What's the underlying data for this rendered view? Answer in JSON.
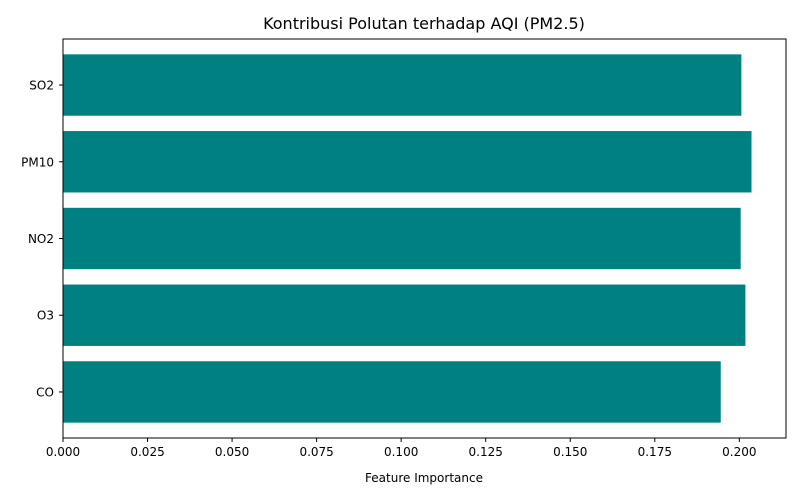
{
  "chart_data": {
    "type": "bar",
    "orientation": "horizontal",
    "title": "Kontribusi Polutan terhadap AQI (PM2.5)",
    "xlabel": "Feature Importance",
    "ylabel": "",
    "categories": [
      "CO",
      "O3",
      "NO2",
      "PM10",
      "SO2"
    ],
    "values": [
      0.1945,
      0.2018,
      0.2004,
      0.2036,
      0.2006
    ],
    "xlim": [
      0,
      0.2138
    ],
    "xticks": [
      0.0,
      0.025,
      0.05,
      0.075,
      0.1,
      0.125,
      0.15,
      0.175,
      0.2
    ],
    "xtick_labels": [
      "0.000",
      "0.025",
      "0.050",
      "0.075",
      "0.100",
      "0.125",
      "0.150",
      "0.175",
      "0.200"
    ],
    "bar_color": "#008080",
    "grid": false,
    "legend": "none"
  }
}
